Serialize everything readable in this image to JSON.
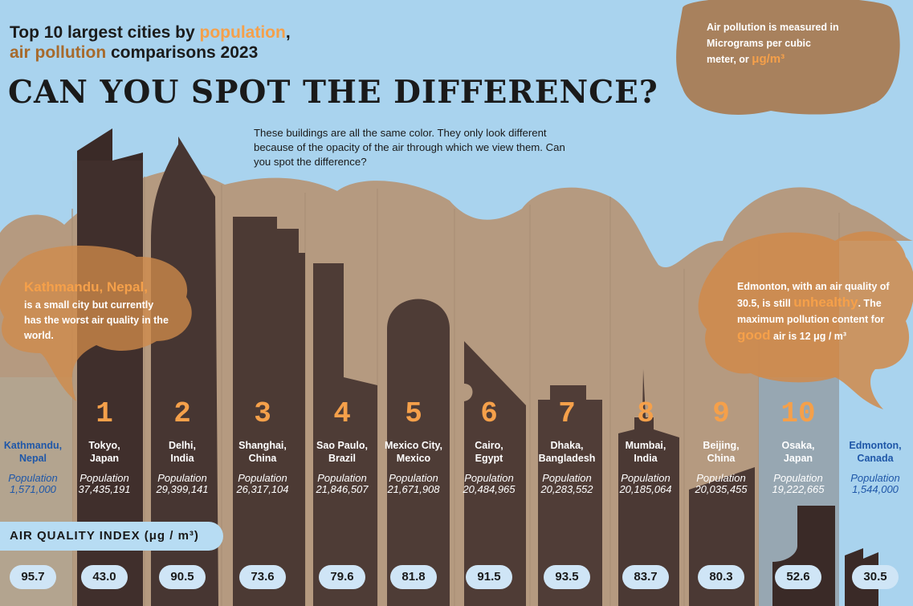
{
  "header": {
    "title_part1": "Top 10 largest cities by ",
    "title_highlight1": "population",
    "title_part2": ",",
    "title_highlight2": "air pollution",
    "title_part3": " comparisons 2023",
    "headline": "CAN YOU SPOT THE DIFFERENCE?",
    "note": "These buildings are all the same color.  They only look different because of the opacity of the air through which we view them. Can you spot the difference?"
  },
  "callouts": {
    "measure": {
      "line1": "Air pollution is measured in",
      "line2": "Micrograms per cubic",
      "line3": "meter, or ",
      "unit": "μg/m³"
    },
    "kathmandu": {
      "title": "Kathmandu, Nepal,",
      "text": "is a small city but currently has the worst air quality in the world."
    },
    "edmonton": {
      "t1": "Edmonton, with an air quality of 30.5, is still ",
      "h1": "unhealthy",
      "t2": ".  The maximum pollution content for ",
      "h2": "good",
      "t3": " air is 12 μg / m³"
    }
  },
  "aqi_banner": "AIR QUALITY INDEX (μg / m³)",
  "colors": {
    "sky": "#a9d3ee",
    "building": "#3a2a27",
    "haze": "#b59a80",
    "accent": "#f5a04a",
    "blue_text": "#1f57a8"
  },
  "chart_data": {
    "type": "table",
    "title": "Top 10 largest cities by population, air pollution comparisons 2023",
    "unit": "μg / m³",
    "cities": [
      {
        "rank": "",
        "name1": "Kathmandu,",
        "name2": "Nepal",
        "population": "1,571,000",
        "aqi": "95.7"
      },
      {
        "rank": "1",
        "name1": "Tokyo,",
        "name2": "Japan",
        "population": "37,435,191",
        "aqi": "43.0"
      },
      {
        "rank": "2",
        "name1": "Delhi,",
        "name2": "India",
        "population": "29,399,141",
        "aqi": "90.5"
      },
      {
        "rank": "3",
        "name1": "Shanghai,",
        "name2": "China",
        "population": "26,317,104",
        "aqi": "73.6"
      },
      {
        "rank": "4",
        "name1": "Sao Paulo,",
        "name2": "Brazil",
        "population": "21,846,507",
        "aqi": "79.6"
      },
      {
        "rank": "5",
        "name1": "Mexico City,",
        "name2": "Mexico",
        "population": "21,671,908",
        "aqi": "81.8"
      },
      {
        "rank": "6",
        "name1": "Cairo,",
        "name2": "Egypt",
        "population": "20,484,965",
        "aqi": "91.5"
      },
      {
        "rank": "7",
        "name1": "Dhaka,",
        "name2": "Bangladesh",
        "population": "20,283,552",
        "aqi": "93.5"
      },
      {
        "rank": "8",
        "name1": "Mumbai,",
        "name2": "India",
        "population": "20,185,064",
        "aqi": "83.7"
      },
      {
        "rank": "9",
        "name1": "Beijing,",
        "name2": "China",
        "population": "20,035,455",
        "aqi": "80.3"
      },
      {
        "rank": "10",
        "name1": "Osaka,",
        "name2": "Japan",
        "population": "19,222,665",
        "aqi": "52.6"
      },
      {
        "rank": "",
        "name1": "Edmonton,",
        "name2": "Canada",
        "population": "1,544,000",
        "aqi": "30.5"
      }
    ],
    "population_label": "Population"
  }
}
